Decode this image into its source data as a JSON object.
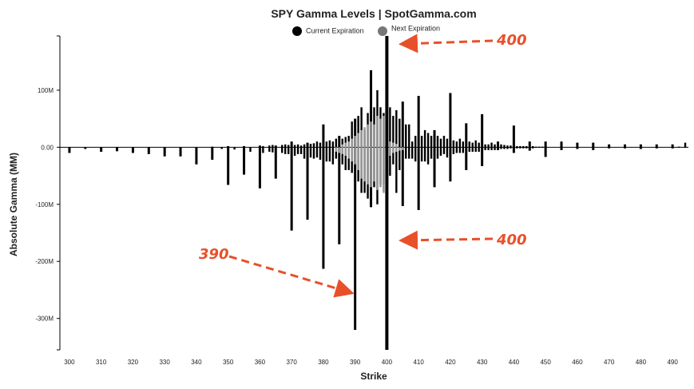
{
  "chart_data": {
    "type": "bar",
    "title": "SPY Gamma Levels | SpotGamma.com",
    "xlabel": "Strike",
    "ylabel": "Absolute Gamma (MM)",
    "xlim": [
      297,
      495
    ],
    "ylim": [
      -355,
      195
    ],
    "x_ticks": [
      "300",
      "310",
      "320",
      "330",
      "340",
      "350",
      "360",
      "370",
      "380",
      "390",
      "400",
      "410",
      "420",
      "430",
      "440",
      "450",
      "460",
      "470",
      "480",
      "490"
    ],
    "y_ticks": [
      {
        "value": 100,
        "label": "100M"
      },
      {
        "value": 0,
        "label": "0.00"
      },
      {
        "value": -100,
        "label": "-100M"
      },
      {
        "value": -200,
        "label": "-200M"
      },
      {
        "value": -300,
        "label": "-300M"
      }
    ],
    "legend": {
      "position": "top-center",
      "items": [
        {
          "name": "Current Expiration",
          "color": "#000000"
        },
        {
          "name": "Next Expiration",
          "color": "#777777"
        }
      ]
    },
    "colors": {
      "current": "#000000",
      "next": "#999999",
      "annotation": "#e8502a"
    },
    "series": [
      {
        "name": "Current Expiration",
        "points": [
          [
            300,
            0,
            -10
          ],
          [
            305,
            0,
            -3
          ],
          [
            310,
            0,
            -8
          ],
          [
            315,
            0,
            -7
          ],
          [
            320,
            0,
            -10
          ],
          [
            325,
            0,
            -12
          ],
          [
            330,
            0,
            -16
          ],
          [
            335,
            0,
            -16
          ],
          [
            340,
            0,
            -30
          ],
          [
            345,
            1,
            -22
          ],
          [
            348,
            0,
            -3
          ],
          [
            350,
            2,
            -66
          ],
          [
            352,
            0,
            -4
          ],
          [
            355,
            2,
            -48
          ],
          [
            357,
            0,
            -8
          ],
          [
            360,
            3,
            -72
          ],
          [
            361,
            2,
            -10
          ],
          [
            363,
            3,
            -8
          ],
          [
            364,
            4,
            -9
          ],
          [
            365,
            3,
            -55
          ],
          [
            367,
            4,
            -10
          ],
          [
            368,
            5,
            -12
          ],
          [
            369,
            4,
            -12
          ],
          [
            370,
            10,
            -146
          ],
          [
            371,
            4,
            -15
          ],
          [
            372,
            5,
            -12
          ],
          [
            373,
            3,
            -12
          ],
          [
            374,
            5,
            -20
          ],
          [
            375,
            8,
            -127
          ],
          [
            376,
            6,
            -18
          ],
          [
            377,
            7,
            -20
          ],
          [
            378,
            10,
            -18
          ],
          [
            379,
            8,
            -22
          ],
          [
            380,
            40,
            -213
          ],
          [
            381,
            10,
            -25
          ],
          [
            382,
            12,
            -25
          ],
          [
            383,
            10,
            -30
          ],
          [
            384,
            15,
            -20
          ],
          [
            385,
            20,
            -170
          ],
          [
            386,
            15,
            -30
          ],
          [
            387,
            18,
            -40
          ],
          [
            388,
            20,
            -40
          ],
          [
            389,
            45,
            -45
          ],
          [
            390,
            50,
            -320
          ],
          [
            391,
            55,
            -60
          ],
          [
            392,
            70,
            -80
          ],
          [
            393,
            30,
            -80
          ],
          [
            394,
            60,
            -90
          ],
          [
            395,
            135,
            -105
          ],
          [
            396,
            70,
            -70
          ],
          [
            397,
            100,
            -100
          ],
          [
            398,
            70,
            -65
          ],
          [
            399,
            60,
            -65
          ],
          [
            400,
            195,
            -355
          ],
          [
            401,
            70,
            -50
          ],
          [
            402,
            55,
            -30
          ],
          [
            403,
            65,
            -80
          ],
          [
            404,
            50,
            -40
          ],
          [
            405,
            80,
            -103
          ],
          [
            406,
            40,
            -20
          ],
          [
            407,
            40,
            -20
          ],
          [
            408,
            10,
            -20
          ],
          [
            409,
            20,
            -25
          ],
          [
            410,
            90,
            -110
          ],
          [
            411,
            20,
            -25
          ],
          [
            412,
            30,
            -25
          ],
          [
            413,
            25,
            -30
          ],
          [
            414,
            20,
            -20
          ],
          [
            415,
            30,
            -70
          ],
          [
            416,
            20,
            -20
          ],
          [
            417,
            15,
            -15
          ],
          [
            418,
            20,
            -12
          ],
          [
            419,
            15,
            -18
          ],
          [
            420,
            95,
            -60
          ],
          [
            421,
            12,
            -12
          ],
          [
            422,
            10,
            -10
          ],
          [
            423,
            15,
            -10
          ],
          [
            424,
            10,
            -10
          ],
          [
            425,
            42,
            -40
          ],
          [
            426,
            10,
            -8
          ],
          [
            427,
            8,
            -8
          ],
          [
            428,
            12,
            -8
          ],
          [
            429,
            8,
            -8
          ],
          [
            430,
            58,
            -33
          ],
          [
            431,
            5,
            -5
          ],
          [
            432,
            5,
            -5
          ],
          [
            433,
            8,
            -5
          ],
          [
            434,
            5,
            -5
          ],
          [
            435,
            10,
            -5
          ],
          [
            436,
            5,
            -3
          ],
          [
            437,
            4,
            -3
          ],
          [
            438,
            3,
            -3
          ],
          [
            439,
            3,
            -2
          ],
          [
            440,
            38,
            -10
          ],
          [
            441,
            2,
            -2
          ],
          [
            442,
            2,
            -2
          ],
          [
            443,
            2,
            -2
          ],
          [
            444,
            2,
            -2
          ],
          [
            445,
            10,
            -6
          ],
          [
            446,
            2,
            -2
          ],
          [
            447,
            1,
            -1
          ],
          [
            448,
            1,
            -1
          ],
          [
            449,
            1,
            -1
          ],
          [
            450,
            10,
            -17
          ],
          [
            455,
            10,
            -5
          ],
          [
            460,
            8,
            -3
          ],
          [
            465,
            8,
            -5
          ],
          [
            470,
            5,
            -2
          ],
          [
            475,
            5,
            -2
          ],
          [
            480,
            5,
            -3
          ],
          [
            485,
            5,
            -2
          ],
          [
            490,
            5,
            -2
          ],
          [
            492,
            1,
            -1
          ],
          [
            494,
            8,
            -1
          ]
        ]
      },
      {
        "name": "Next Expiration",
        "points": [
          [
            384,
            -8
          ],
          [
            385,
            -10
          ],
          [
            386,
            -12
          ],
          [
            387,
            -15
          ],
          [
            388,
            -20
          ],
          [
            389,
            -25
          ],
          [
            390,
            -30
          ],
          [
            391,
            -40
          ],
          [
            392,
            -55
          ],
          [
            393,
            -60
          ],
          [
            394,
            -65
          ],
          [
            395,
            -70
          ],
          [
            396,
            -60
          ],
          [
            397,
            -75
          ],
          [
            398,
            -70
          ],
          [
            399,
            -80
          ],
          [
            401,
            -15
          ],
          [
            402,
            -10
          ],
          [
            403,
            -8
          ],
          [
            404,
            -6
          ],
          [
            405,
            -5
          ],
          [
            386,
            5
          ],
          [
            387,
            8
          ],
          [
            388,
            10
          ],
          [
            389,
            15
          ],
          [
            390,
            20
          ],
          [
            391,
            25
          ],
          [
            392,
            30
          ],
          [
            393,
            35
          ],
          [
            394,
            40
          ],
          [
            395,
            45
          ],
          [
            396,
            40
          ],
          [
            397,
            55
          ],
          [
            398,
            50
          ],
          [
            399,
            55
          ],
          [
            401,
            10
          ],
          [
            402,
            8
          ],
          [
            403,
            6
          ]
        ]
      }
    ],
    "annotations": [
      {
        "label": "400",
        "target_strike": 400,
        "target_value": 185
      },
      {
        "label": "400",
        "target_strike": 400,
        "target_value": -160
      },
      {
        "label": "390",
        "target_strike": 389,
        "target_value": -255
      }
    ]
  }
}
